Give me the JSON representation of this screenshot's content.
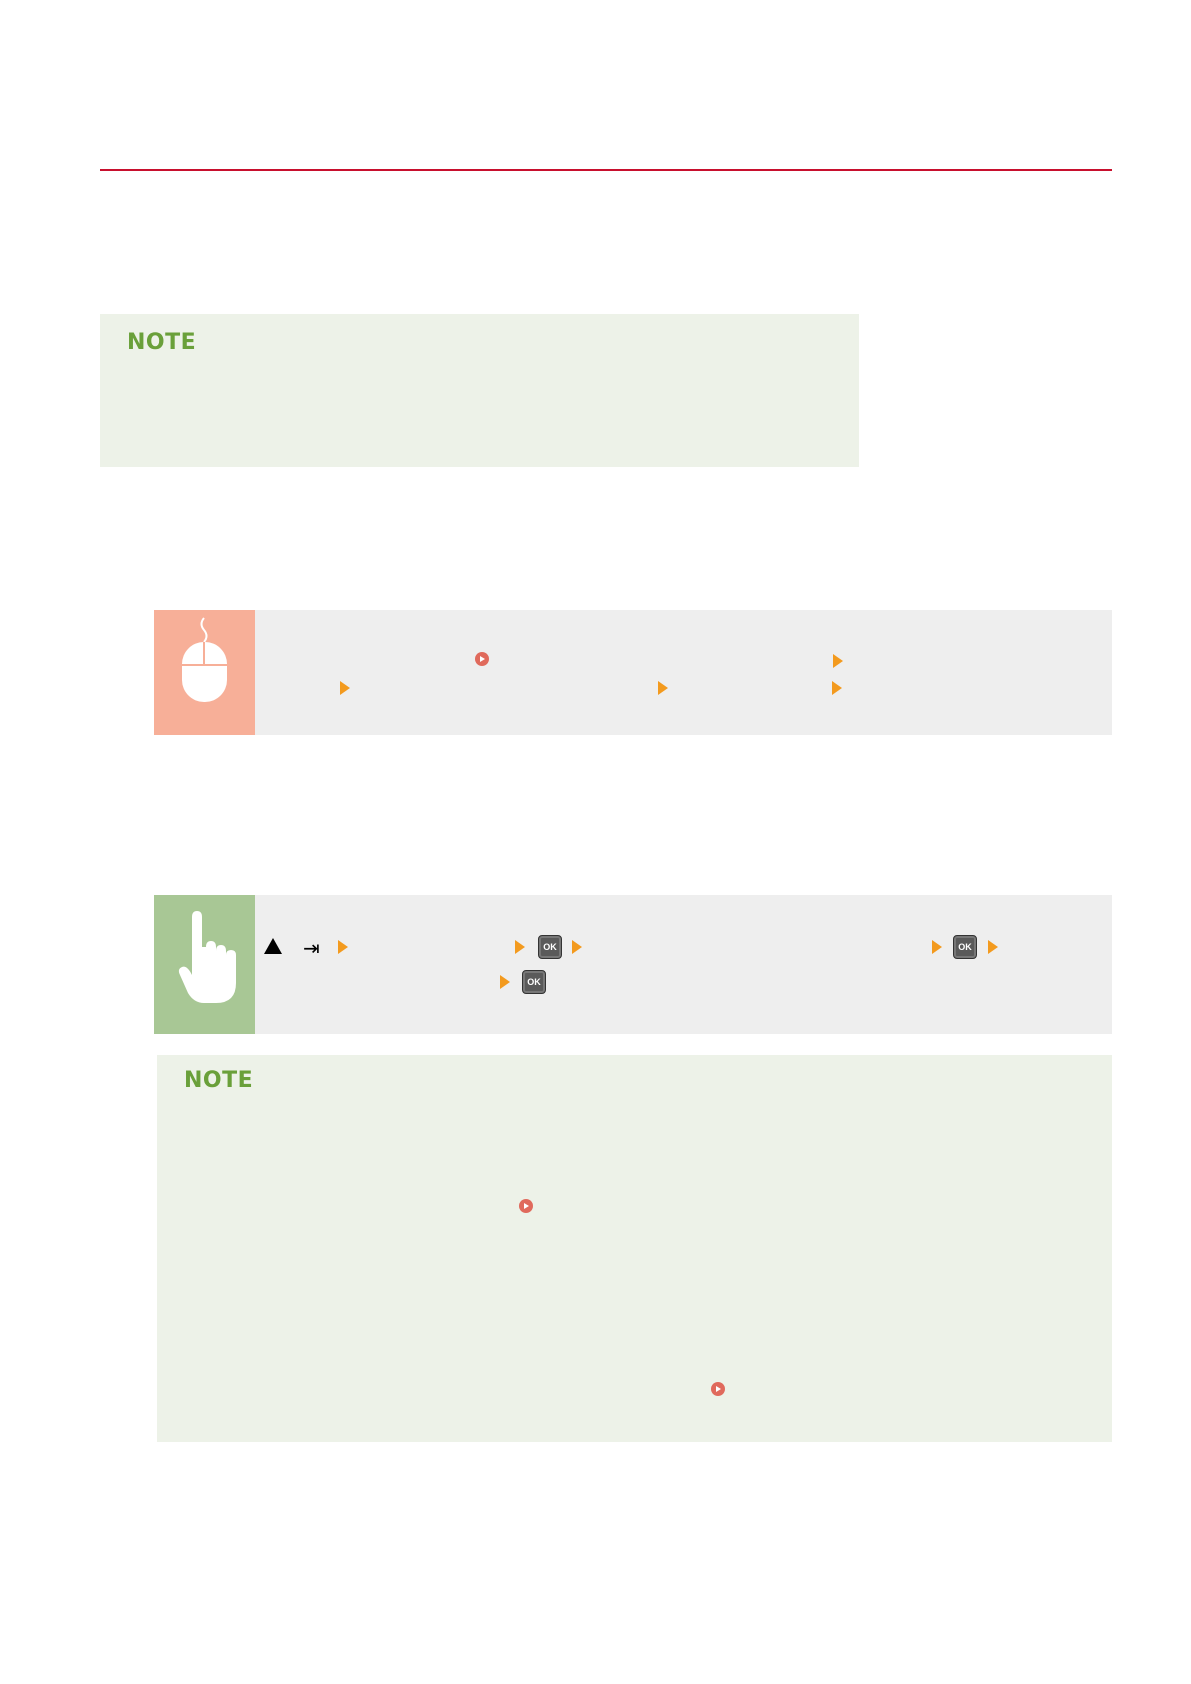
{
  "colors": {
    "rule": "#c8102e",
    "note_bg": "#edf2e8",
    "note_title": "#6aa03a",
    "block_bg": "#eeeeee",
    "mouse_side": "#f7af98",
    "hand_side": "#a8c795",
    "arrow": "#f39a1e",
    "link": "#e06a5c"
  },
  "note1": {
    "title": "NOTE"
  },
  "remote_ui_block": {
    "icon": "mouse-icon"
  },
  "panel_block": {
    "icon": "hand-pointer-icon",
    "ok_label": "OK"
  },
  "note2": {
    "title": "NOTE"
  }
}
